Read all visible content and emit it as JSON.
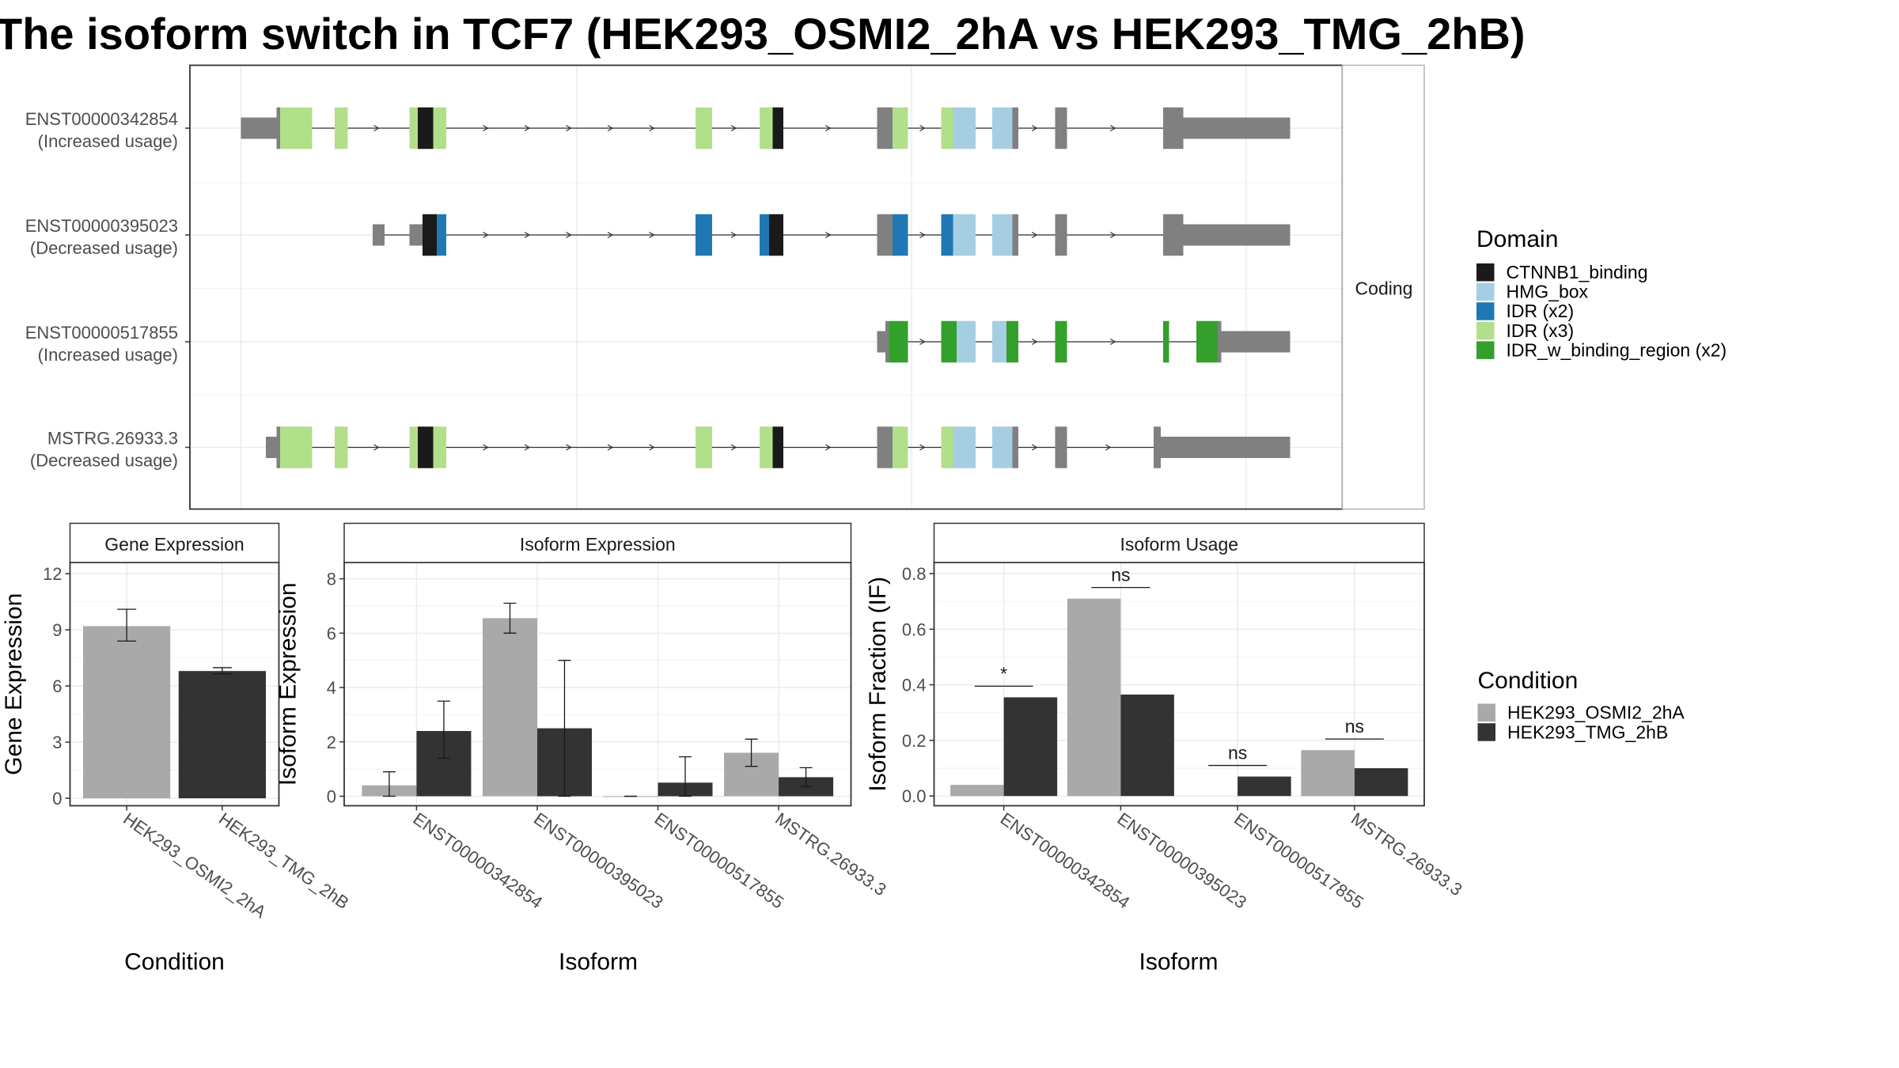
{
  "title": "The isoform switch in TCF7 (HEK293_OSMI2_2hA vs HEK293_TMG_2hB)",
  "chart_data": [
    {
      "type": "other",
      "description_kind": "isoform structure",
      "facet_label": "Coding",
      "isoforms": [
        {
          "name": "ENST00000342854",
          "usage": "(Increased usage)",
          "line": [
            203,
            1087
          ],
          "blocks": [
            {
              "s": 203,
              "e": 233,
              "h": "utr",
              "c": "gray"
            },
            {
              "s": 233,
              "e": 236,
              "h": "cds",
              "c": "gray"
            },
            {
              "s": 236,
              "e": 263,
              "h": "cds",
              "c": "light_green"
            },
            {
              "s": 282,
              "e": 293,
              "h": "cds",
              "c": "light_green"
            },
            {
              "s": 345,
              "e": 352,
              "h": "cds",
              "c": "light_green"
            },
            {
              "s": 352,
              "e": 365,
              "h": "cds",
              "c": "black"
            },
            {
              "s": 365,
              "e": 376,
              "h": "cds",
              "c": "light_green"
            },
            {
              "s": 586,
              "e": 600,
              "h": "cds",
              "c": "light_green"
            },
            {
              "s": 640,
              "e": 651,
              "h": "cds",
              "c": "light_green"
            },
            {
              "s": 651,
              "e": 660,
              "h": "cds",
              "c": "black"
            },
            {
              "s": 739,
              "e": 752,
              "h": "cds",
              "c": "gray"
            },
            {
              "s": 752,
              "e": 765,
              "h": "cds",
              "c": "light_green"
            },
            {
              "s": 793,
              "e": 803,
              "h": "cds",
              "c": "light_green"
            },
            {
              "s": 803,
              "e": 822,
              "h": "cds",
              "c": "light_blue"
            },
            {
              "s": 836,
              "e": 853,
              "h": "cds",
              "c": "light_blue"
            },
            {
              "s": 853,
              "e": 858,
              "h": "cds",
              "c": "gray"
            },
            {
              "s": 889,
              "e": 899,
              "h": "cds",
              "c": "gray"
            },
            {
              "s": 980,
              "e": 997,
              "h": "cds",
              "c": "gray"
            },
            {
              "s": 997,
              "e": 1087,
              "h": "utr",
              "c": "gray"
            }
          ]
        },
        {
          "name": "ENST00000395023",
          "usage": "(Decreased usage)",
          "line": [
            314,
            1087
          ],
          "blocks": [
            {
              "s": 314,
              "e": 324,
              "h": "utr",
              "c": "gray"
            },
            {
              "s": 345,
              "e": 356,
              "h": "utr",
              "c": "gray"
            },
            {
              "s": 356,
              "e": 368,
              "h": "cds",
              "c": "black"
            },
            {
              "s": 368,
              "e": 376,
              "h": "cds",
              "c": "blue"
            },
            {
              "s": 586,
              "e": 600,
              "h": "cds",
              "c": "blue"
            },
            {
              "s": 640,
              "e": 648,
              "h": "cds",
              "c": "blue"
            },
            {
              "s": 648,
              "e": 660,
              "h": "cds",
              "c": "black"
            },
            {
              "s": 739,
              "e": 752,
              "h": "cds",
              "c": "gray"
            },
            {
              "s": 752,
              "e": 765,
              "h": "cds",
              "c": "blue"
            },
            {
              "s": 793,
              "e": 803,
              "h": "cds",
              "c": "blue"
            },
            {
              "s": 803,
              "e": 822,
              "h": "cds",
              "c": "light_blue"
            },
            {
              "s": 836,
              "e": 853,
              "h": "cds",
              "c": "light_blue"
            },
            {
              "s": 853,
              "e": 858,
              "h": "cds",
              "c": "gray"
            },
            {
              "s": 889,
              "e": 899,
              "h": "cds",
              "c": "gray"
            },
            {
              "s": 980,
              "e": 997,
              "h": "cds",
              "c": "gray"
            },
            {
              "s": 997,
              "e": 1087,
              "h": "utr",
              "c": "gray"
            }
          ]
        },
        {
          "name": "ENST00000517855",
          "usage": "(Increased usage)",
          "line": [
            739,
            1087
          ],
          "blocks": [
            {
              "s": 739,
              "e": 746,
              "h": "utr",
              "c": "gray"
            },
            {
              "s": 746,
              "e": 749,
              "h": "cds",
              "c": "gray"
            },
            {
              "s": 749,
              "e": 765,
              "h": "cds",
              "c": "green"
            },
            {
              "s": 793,
              "e": 806,
              "h": "cds",
              "c": "green"
            },
            {
              "s": 806,
              "e": 822,
              "h": "cds",
              "c": "light_blue"
            },
            {
              "s": 836,
              "e": 848,
              "h": "cds",
              "c": "light_blue"
            },
            {
              "s": 848,
              "e": 858,
              "h": "cds",
              "c": "green"
            },
            {
              "s": 889,
              "e": 899,
              "h": "cds",
              "c": "green"
            },
            {
              "s": 980,
              "e": 985,
              "h": "cds",
              "c": "green"
            },
            {
              "s": 1008,
              "e": 1026,
              "h": "cds",
              "c": "green"
            },
            {
              "s": 1026,
              "e": 1029,
              "h": "cds",
              "c": "gray"
            },
            {
              "s": 1029,
              "e": 1087,
              "h": "utr",
              "c": "gray"
            }
          ]
        },
        {
          "name": "MSTRG.26933.3",
          "usage": "(Decreased usage)",
          "line": [
            224,
            1087
          ],
          "blocks": [
            {
              "s": 224,
              "e": 233,
              "h": "utr",
              "c": "gray"
            },
            {
              "s": 233,
              "e": 236,
              "h": "cds",
              "c": "gray"
            },
            {
              "s": 236,
              "e": 263,
              "h": "cds",
              "c": "light_green"
            },
            {
              "s": 282,
              "e": 293,
              "h": "cds",
              "c": "light_green"
            },
            {
              "s": 345,
              "e": 352,
              "h": "cds",
              "c": "light_green"
            },
            {
              "s": 352,
              "e": 365,
              "h": "cds",
              "c": "black"
            },
            {
              "s": 365,
              "e": 376,
              "h": "cds",
              "c": "light_green"
            },
            {
              "s": 586,
              "e": 600,
              "h": "cds",
              "c": "light_green"
            },
            {
              "s": 640,
              "e": 651,
              "h": "cds",
              "c": "light_green"
            },
            {
              "s": 651,
              "e": 660,
              "h": "cds",
              "c": "black"
            },
            {
              "s": 739,
              "e": 752,
              "h": "cds",
              "c": "gray"
            },
            {
              "s": 752,
              "e": 765,
              "h": "cds",
              "c": "light_green"
            },
            {
              "s": 793,
              "e": 803,
              "h": "cds",
              "c": "light_green"
            },
            {
              "s": 803,
              "e": 822,
              "h": "cds",
              "c": "light_blue"
            },
            {
              "s": 836,
              "e": 853,
              "h": "cds",
              "c": "light_blue"
            },
            {
              "s": 853,
              "e": 858,
              "h": "cds",
              "c": "gray"
            },
            {
              "s": 889,
              "e": 899,
              "h": "cds",
              "c": "gray"
            },
            {
              "s": 972,
              "e": 978,
              "h": "cds",
              "c": "gray"
            },
            {
              "s": 978,
              "e": 1087,
              "h": "utr",
              "c": "gray"
            }
          ]
        }
      ],
      "domain_legend": {
        "title": "Domain",
        "entries": [
          {
            "label": "CTNNB1_binding",
            "key": "black"
          },
          {
            "label": "HMG_box",
            "key": "light_blue"
          },
          {
            "label": "IDR (x2)",
            "key": "blue"
          },
          {
            "label": "IDR (x3)",
            "key": "light_green"
          },
          {
            "label": "IDR_w_binding_region (x2)",
            "key": "green"
          }
        ]
      }
    },
    {
      "type": "bar",
      "facet_label": "Gene Expression",
      "xlabel": "Condition",
      "ylabel": "Gene Expression",
      "categories": [
        "HEK293_OSMI2_2hA",
        "HEK293_TMG_2hB"
      ],
      "ylim": [
        -0.4,
        12.6
      ],
      "yticks": [
        0,
        3,
        6,
        9,
        12
      ],
      "bars": [
        {
          "cat": 0,
          "cond": 0,
          "value": 9.2,
          "err": [
            8.4,
            10.1
          ]
        },
        {
          "cat": 1,
          "cond": 1,
          "value": 6.8,
          "err": [
            6.65,
            6.98
          ]
        }
      ]
    },
    {
      "type": "bar",
      "facet_label": "Isoform Expression",
      "xlabel": "Isoform",
      "ylabel": "Isoform Expression",
      "categories": [
        "ENST00000342854",
        "ENST00000395023",
        "ENST00000517855",
        "MSTRG.26933.3"
      ],
      "ylim": [
        -0.35,
        8.6
      ],
      "yticks": [
        0,
        2,
        4,
        6,
        8
      ],
      "bars": [
        {
          "cat": 0,
          "cond": 0,
          "value": 0.4,
          "err": [
            0.0,
            0.9
          ]
        },
        {
          "cat": 0,
          "cond": 1,
          "value": 2.4,
          "err": [
            1.4,
            3.5
          ]
        },
        {
          "cat": 1,
          "cond": 0,
          "value": 6.55,
          "err": [
            6.0,
            7.1
          ]
        },
        {
          "cat": 1,
          "cond": 1,
          "value": 2.5,
          "err": [
            0.0,
            5.0
          ]
        },
        {
          "cat": 2,
          "cond": 0,
          "value": 0.0,
          "err": [
            0.0,
            0.0
          ]
        },
        {
          "cat": 2,
          "cond": 1,
          "value": 0.5,
          "err": [
            0.0,
            1.45
          ]
        },
        {
          "cat": 3,
          "cond": 0,
          "value": 1.6,
          "err": [
            1.1,
            2.1
          ]
        },
        {
          "cat": 3,
          "cond": 1,
          "value": 0.7,
          "err": [
            0.35,
            1.05
          ]
        }
      ]
    },
    {
      "type": "bar",
      "facet_label": "Isoform Usage",
      "xlabel": "Isoform",
      "ylabel": "Isoform Fraction (IF)",
      "categories": [
        "ENST00000342854",
        "ENST00000395023",
        "ENST00000517855",
        "MSTRG.26933.3"
      ],
      "ylim": [
        -0.035,
        0.84
      ],
      "yticks": [
        0.0,
        0.2,
        0.4,
        0.6,
        0.8
      ],
      "ytick_labels": [
        "0.0",
        "0.2",
        "0.4",
        "0.6",
        "0.8"
      ],
      "bars": [
        {
          "cat": 0,
          "cond": 0,
          "value": 0.04
        },
        {
          "cat": 0,
          "cond": 1,
          "value": 0.355
        },
        {
          "cat": 1,
          "cond": 0,
          "value": 0.71
        },
        {
          "cat": 1,
          "cond": 1,
          "value": 0.365
        },
        {
          "cat": 2,
          "cond": 1,
          "value": 0.07
        },
        {
          "cat": 3,
          "cond": 0,
          "value": 0.165
        },
        {
          "cat": 3,
          "cond": 1,
          "value": 0.1
        }
      ],
      "significance": [
        {
          "cat": 0,
          "label": "*",
          "y": 0.395
        },
        {
          "cat": 1,
          "label": "ns",
          "y": 0.75
        },
        {
          "cat": 2,
          "label": "ns",
          "y": 0.11
        },
        {
          "cat": 3,
          "label": "ns",
          "y": 0.205
        }
      ]
    }
  ],
  "condition_legend": {
    "title": "Condition",
    "entries": [
      "HEK293_OSMI2_2hA",
      "HEK293_TMG_2hB"
    ]
  },
  "colors": {
    "black": "#1a1a1a",
    "light_blue": "#a6cee3",
    "blue": "#1f78b4",
    "light_green": "#b2df8a",
    "green": "#33a02c",
    "gray": "#808080",
    "cond_0": "#a9a9a9",
    "cond_1": "#333333"
  }
}
